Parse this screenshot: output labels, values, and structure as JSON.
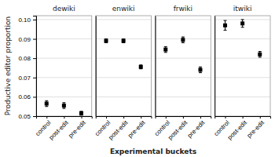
{
  "chart_data": [
    {
      "type": "errorbar",
      "title": "dewiki",
      "xlabel": "Experimental buckets",
      "ylabel": "Productive editor proportion",
      "categories": [
        "control",
        "post-edit",
        "pre-edit"
      ],
      "values": [
        0.0565,
        0.0555,
        0.0515
      ],
      "errors": [
        [
          0.0015,
          0.0015
        ],
        [
          0.0015,
          0.0015
        ],
        [
          0.001,
          0.001
        ]
      ],
      "color": "#000000",
      "marker": "square",
      "ylim": [
        0.05,
        0.102
      ],
      "yticks": [
        0.05,
        0.06,
        0.07,
        0.08,
        0.09,
        {
          "value": 0.1,
          "label": "0.10"
        }
      ],
      "grid": true
    },
    {
      "type": "errorbar",
      "title": "enwiki",
      "categories": [
        "control",
        "post-edit",
        "pre-edit"
      ],
      "values": [
        0.089,
        0.089,
        0.0755
      ],
      "errors": [
        [
          0.001,
          0.001
        ],
        [
          0.001,
          0.001
        ],
        [
          0.001,
          0.001
        ]
      ],
      "color": "#000000",
      "marker": "square",
      "ylim": [
        0.05,
        0.102
      ],
      "yticks": [
        0.05,
        0.06,
        0.07,
        0.08,
        0.09,
        {
          "value": 0.1,
          "label": "0.10"
        }
      ],
      "grid": true,
      "tick_labels": "x"
    },
    {
      "type": "errorbar",
      "title": "frwiki",
      "categories": [
        "control",
        "post-edit",
        "pre-edit"
      ],
      "values": [
        0.0845,
        0.0895,
        0.074
      ],
      "errors": [
        [
          0.0015,
          0.0015
        ],
        [
          0.0015,
          0.0015
        ],
        [
          0.0015,
          0.0015
        ]
      ],
      "color": "#000000",
      "marker": "square",
      "ylim": [
        0.05,
        0.102
      ],
      "yticks": [
        0.05,
        0.06,
        0.07,
        0.08,
        0.09,
        {
          "value": 0.1,
          "label": "0.10"
        }
      ],
      "grid": true,
      "tick_labels": "x"
    },
    {
      "type": "errorbar",
      "title": "itwiki",
      "categories": [
        "control",
        "post-edit",
        "pre-edit"
      ],
      "values": [
        0.097,
        0.098,
        0.082
      ],
      "errors": [
        [
          0.0025,
          0.0025
        ],
        [
          0.002,
          0.002
        ],
        [
          0.0015,
          0.0015
        ]
      ],
      "color": "#000000",
      "marker": "square",
      "ylim": [
        0.05,
        0.102
      ],
      "yticks": [
        0.05,
        0.06,
        0.07,
        0.08,
        0.09,
        {
          "value": 0.1,
          "label": "0.10"
        }
      ],
      "grid": true,
      "tick_labels": "x"
    }
  ]
}
